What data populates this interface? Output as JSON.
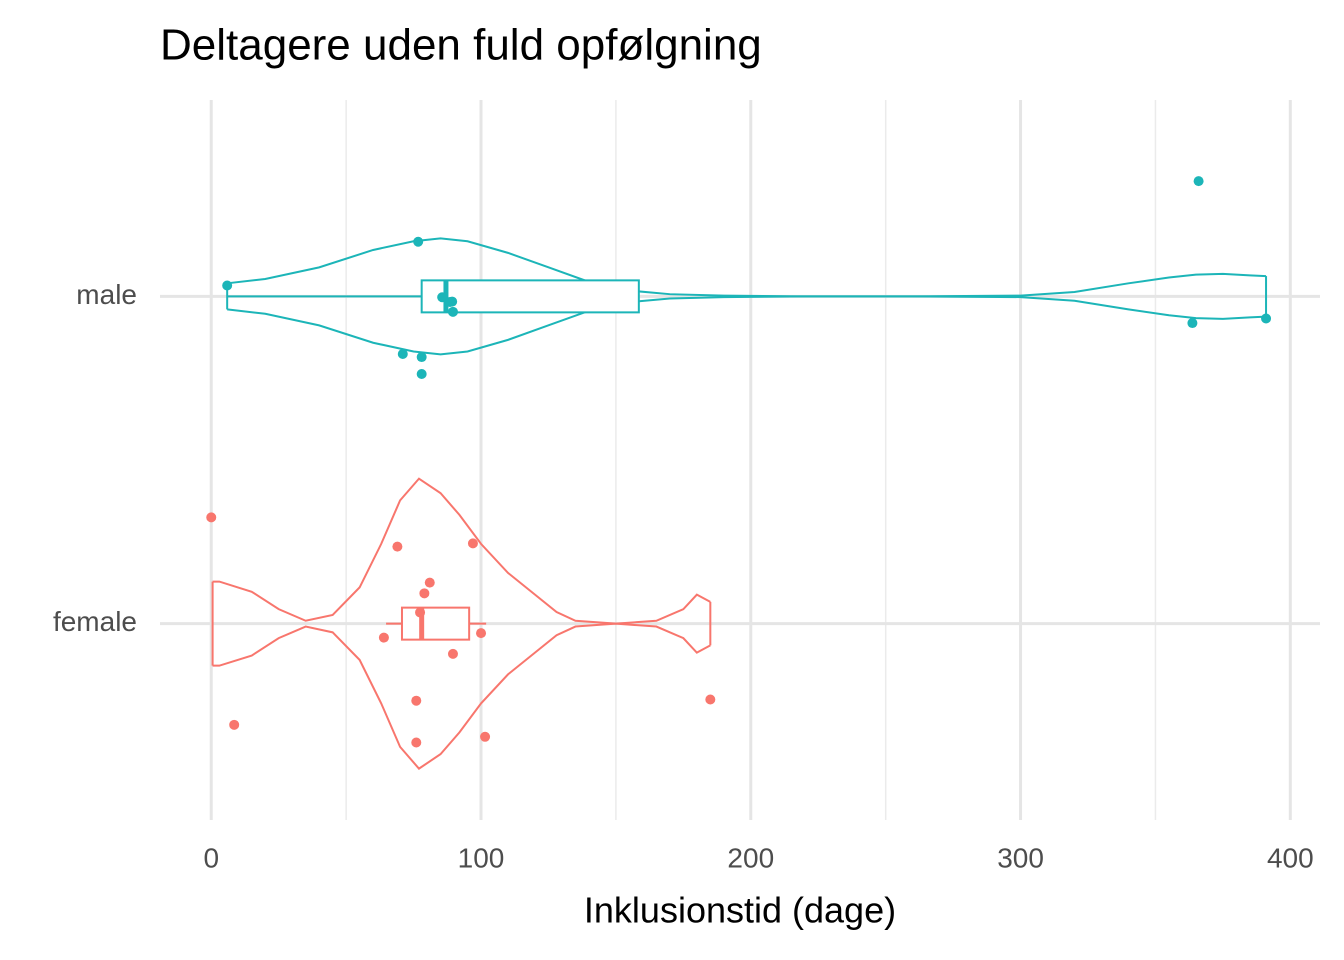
{
  "chart_data": {
    "type": "violin",
    "title": "Deltagere uden fuld opfølgning",
    "x_label": "Inklusionstid (dage)",
    "xlim": [
      -19,
      411
    ],
    "xticks": [
      0,
      100,
      200,
      300,
      400
    ],
    "grid": true,
    "series": [
      {
        "name": "female",
        "color": "#F8766D",
        "points": [
          8.5,
          0,
          64,
          79,
          77.4,
          89.6,
          97,
          81,
          100,
          101.5,
          76,
          69,
          76,
          185
        ],
        "box": {
          "whisker_low": 64.8,
          "q1": 70.7,
          "median": 78,
          "q3": 95.6,
          "whisker_high": 101.9
        },
        "violin": {
          "x": [
            0.5,
            3,
            15,
            25,
            35,
            45,
            55,
            63,
            70,
            77,
            85,
            92,
            100,
            110,
            120,
            128,
            135,
            150,
            165,
            175,
            180,
            185
          ],
          "density": [
            0.29,
            0.29,
            0.22,
            0.1,
            0.02,
            0.06,
            0.25,
            0.55,
            0.85,
            1.0,
            0.9,
            0.75,
            0.55,
            0.35,
            0.2,
            0.08,
            0.02,
            0.0,
            0.02,
            0.1,
            0.2,
            0.15
          ]
        }
      },
      {
        "name": "male",
        "color": "#1CB5B8",
        "points": [
          71,
          89.6,
          5.9,
          76.7,
          78,
          78,
          85.6,
          88.5,
          89.3,
          366,
          391,
          363.7
        ],
        "box": {
          "whisker_low": 5.9,
          "q1": 78,
          "median": 87,
          "q3": 158.5,
          "whisker_high": 158.5
        },
        "violin": {
          "x": [
            5.9,
            20,
            40,
            60,
            75,
            85,
            95,
            110,
            125,
            140,
            155,
            170,
            190,
            220,
            260,
            300,
            320,
            340,
            355,
            365,
            375,
            385,
            391
          ],
          "density": [
            0.09,
            0.12,
            0.2,
            0.32,
            0.38,
            0.4,
            0.38,
            0.3,
            0.2,
            0.1,
            0.04,
            0.015,
            0.005,
            0.0,
            0.0,
            0.005,
            0.03,
            0.09,
            0.13,
            0.15,
            0.155,
            0.145,
            0.14
          ]
        }
      }
    ]
  }
}
